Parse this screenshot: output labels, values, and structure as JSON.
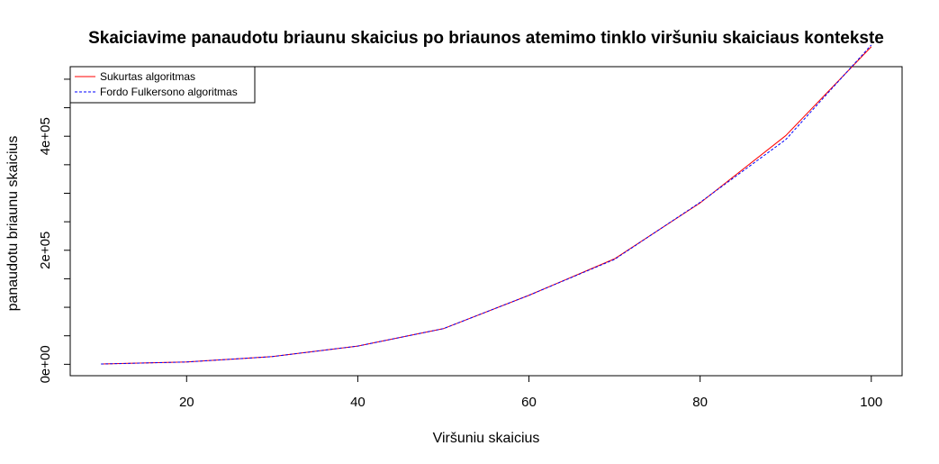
{
  "chart_data": {
    "type": "line",
    "title": "Skaiciavime panaudotu briaunu skaicius po briaunos atemimo tinklo viršuniu skaiciaus kontekste",
    "xlabel": "Viršuniu skaicius",
    "ylabel": "panaudotu briaunu skaicius",
    "xlim": [
      6.4,
      103.6
    ],
    "ylim": [
      -20000,
      522000
    ],
    "x_ticks": [
      20,
      40,
      60,
      80,
      100
    ],
    "x_tick_labels": [
      "20",
      "40",
      "60",
      "80",
      "100"
    ],
    "y_ticks": [
      0,
      50000,
      100000,
      150000,
      200000,
      250000,
      300000,
      350000,
      400000,
      450000,
      500000
    ],
    "y_tick_labels": [
      {
        "value": 0,
        "label": "0e+00"
      },
      {
        "value": 200000,
        "label": "2e+05"
      },
      {
        "value": 400000,
        "label": "4e+05"
      }
    ],
    "legend_position": "top-left",
    "grid": false,
    "x": [
      10,
      20,
      30,
      40,
      50,
      60,
      70,
      80,
      90,
      100
    ],
    "series": [
      {
        "name": "Sukurtas algoritmas",
        "color": "#ff0000",
        "dash": "solid",
        "values": [
          500,
          4000,
          13500,
          32000,
          62500,
          121000,
          185000,
          283000,
          401000,
          557000
        ]
      },
      {
        "name": "Fordo Fulkersono algoritmas",
        "color": "#0000ff",
        "dash": "dashed",
        "values": [
          500,
          4000,
          13500,
          32000,
          62500,
          121000,
          184000,
          284000,
          394000,
          560000
        ]
      }
    ]
  }
}
